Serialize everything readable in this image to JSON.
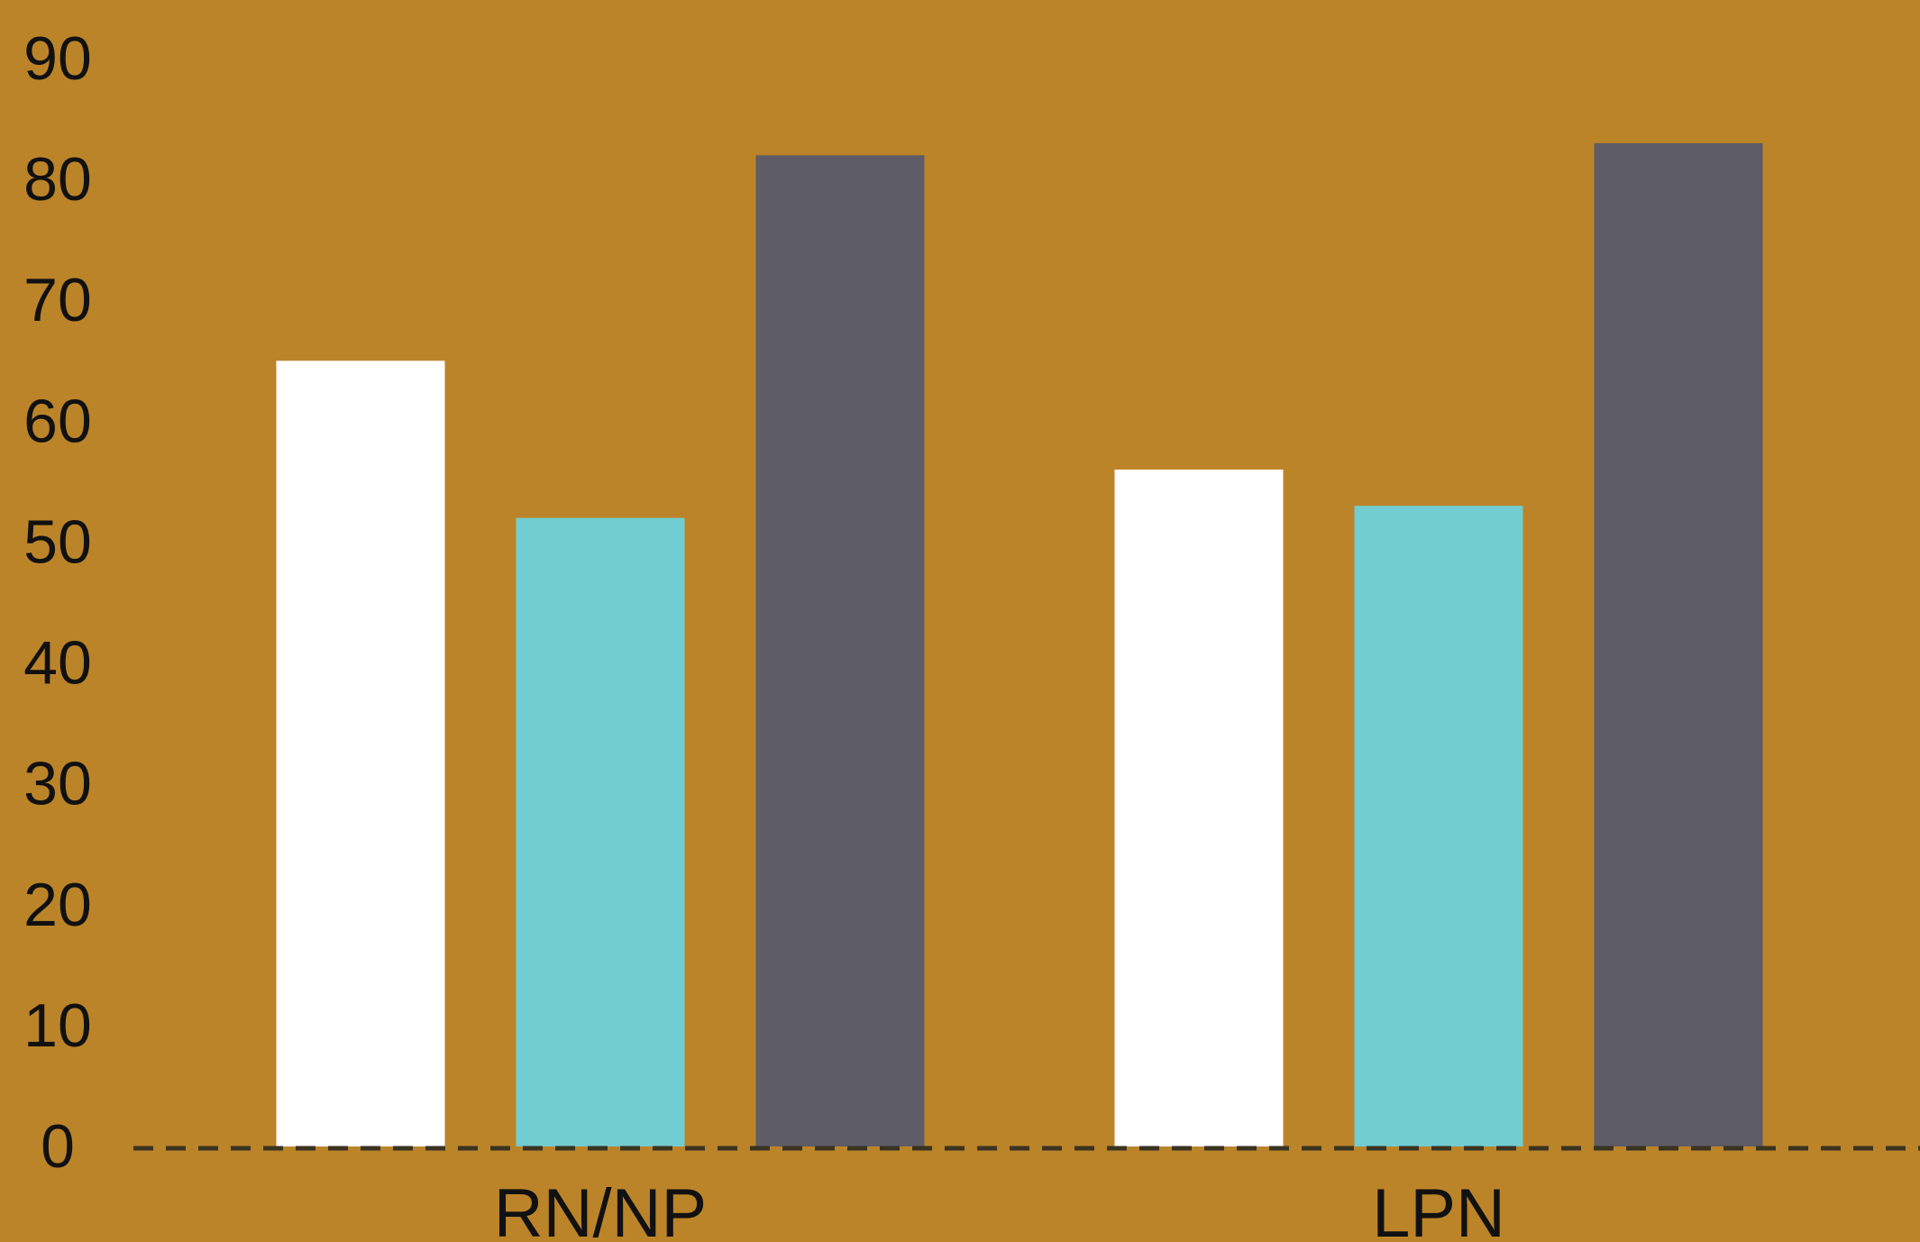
{
  "background_color": "#BC8429",
  "chart_data": {
    "type": "bar",
    "title": "",
    "xlabel": "",
    "ylabel": "",
    "categories": [
      "RN/NP",
      "LPN"
    ],
    "series": [
      {
        "color": "#FFFFFF",
        "values": [
          65,
          56
        ]
      },
      {
        "color": "#72CDD0",
        "values": [
          52,
          53
        ]
      },
      {
        "color": "#5E5C66",
        "values": [
          82,
          83
        ]
      }
    ],
    "yticks": [
      "0",
      "10",
      "20",
      "30",
      "40",
      "50",
      "60",
      "70",
      "80",
      "90"
    ],
    "ylim": [
      0,
      90
    ],
    "grid": false,
    "legend": "none",
    "baseline_style": "dashed"
  }
}
